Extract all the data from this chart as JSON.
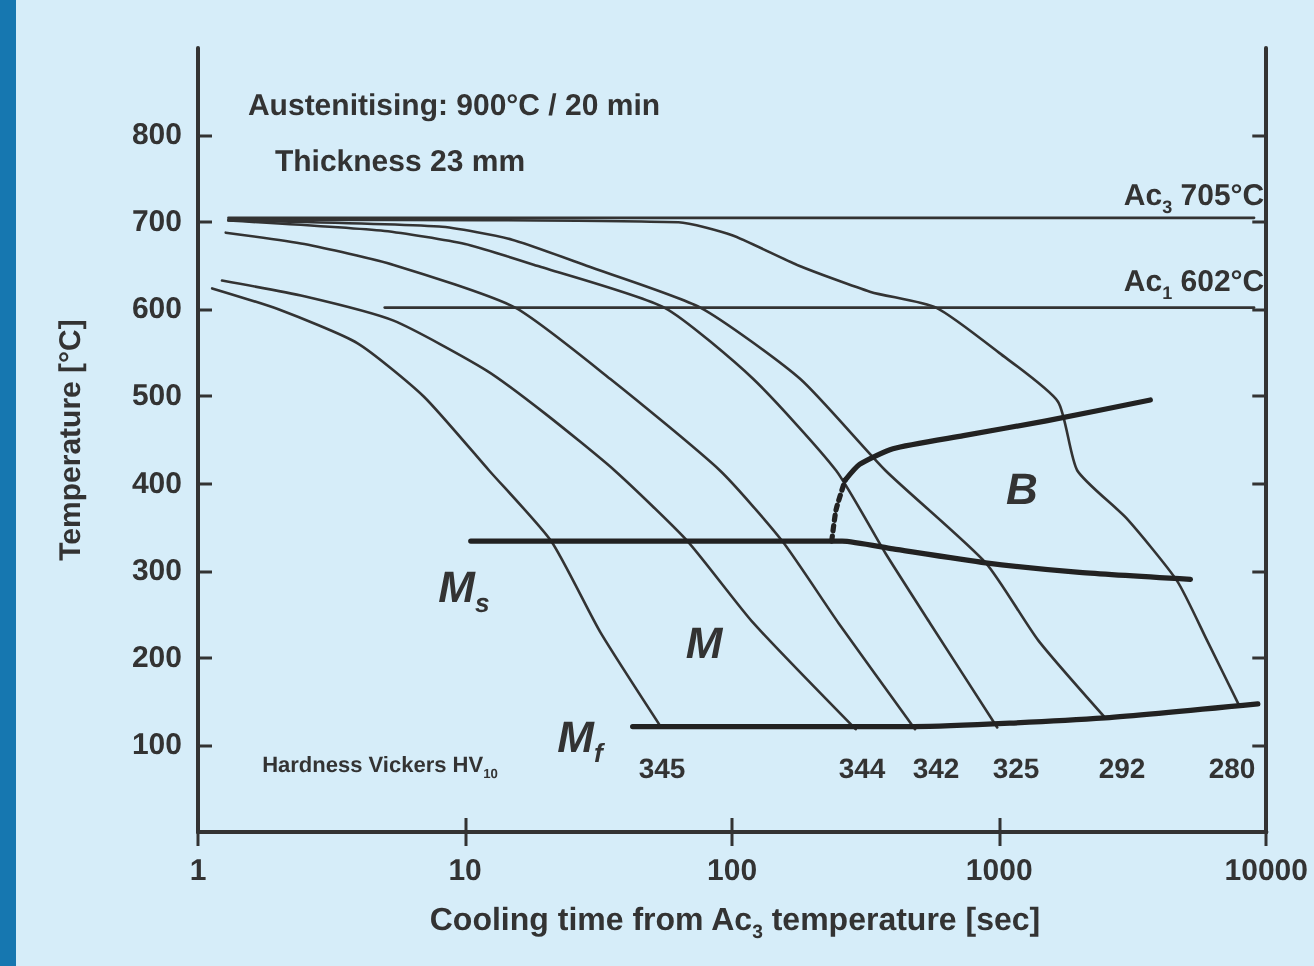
{
  "chart_data": {
    "type": "line",
    "xlabel": "Cooling time from Ac$_{3}$ temperature [sec]",
    "ylabel": "Temperature [°C]",
    "log": "x",
    "xlim": [
      1,
      10000
    ],
    "xticks": [
      1,
      10,
      100,
      1000,
      10000
    ],
    "ylim": [
      0,
      900
    ],
    "yticks": [
      100,
      200,
      300,
      400,
      500,
      600,
      700,
      800
    ],
    "grid": false,
    "marker": "none",
    "line_style": "solid",
    "series": [
      {
        "color": "#333333",
        "x": [
          1.3,
          9000
        ],
        "values": [
          705,
          705
        ]
      },
      {
        "color": "#333333",
        "x": [
          5,
          9000
        ],
        "values": [
          602,
          602
        ]
      },
      {
        "color": "#333333",
        "x": [
          1.13,
          2,
          3.96,
          7,
          12.3,
          21,
          32,
          54
        ],
        "values": [
          624,
          600,
          561,
          500,
          415,
          334,
          230,
          121
        ]
      },
      {
        "color": "#333333",
        "x": [
          1.23,
          2.5,
          5.4,
          12,
          20,
          36.3,
          68,
          120,
          290
        ],
        "values": [
          633,
          615,
          587,
          530,
          480,
          415,
          334,
          240,
          118
        ]
      },
      {
        "color": "#333333",
        "x": [
          1.27,
          2.5,
          5.4,
          15.4,
          35,
          90,
          154,
          250,
          484
        ],
        "values": [
          688,
          675,
          651,
          602,
          520,
          415,
          334,
          240,
          118
        ]
      },
      {
        "color": "#333333",
        "x": [
          1.3,
          5,
          10,
          18.6,
          55.7,
          120,
          245,
          375,
          550,
          983
        ],
        "values": [
          702,
          690,
          675,
          650,
          602,
          520,
          415,
          320,
          240,
          120
        ]
      },
      {
        "color": "#333333",
        "x": [
          1.3,
          8,
          15,
          28.5,
          76,
          180,
          375,
          890,
          1400,
          2495
        ],
        "values": [
          702,
          695,
          680,
          650,
          602,
          520,
          415,
          309,
          220,
          131
        ]
      },
      {
        "color": "#333333",
        "x": [
          1.3,
          63,
          100,
          178,
          330,
          580,
          1000,
          1660,
          1960,
          3000,
          4640,
          6000,
          7860
        ],
        "values": [
          703,
          700,
          685,
          650,
          620,
          602,
          550,
          494,
          415,
          360,
          288,
          220,
          147
        ]
      },
      {
        "color": "#222222",
        "x": [
          10.5,
          258,
          400,
          890,
          2000,
          5200
        ],
        "values": [
          334,
          334,
          325,
          309,
          298,
          290
        ]
      },
      {
        "color": "#222222",
        "x": [
          42.4,
          480,
          2495,
          9300
        ],
        "values": [
          121,
          121,
          131,
          147
        ]
      },
      {
        "color": "#222222",
        "x": [
          265,
          300,
          400,
          735,
          1500,
          3680
        ],
        "values": [
          404,
          422,
          440,
          455,
          472,
          496
        ]
      },
      {
        "color": "#222222",
        "x": [
          236,
          245,
          265
        ],
        "values": [
          334,
          370,
          404
        ],
        "line_style": "dotted"
      }
    ],
    "annotations": [
      "Austenitising: 900°C / 20 min",
      "Thickness 23 mm",
      "Ac$_{3}$ 705°C",
      "Ac$_{1}$ 602°C",
      "B",
      "M$_{s}$",
      "M",
      "M$_{f}$",
      "Hardness Vickers HV$_{10}$",
      "345",
      "344",
      "342",
      "325",
      "292",
      "280"
    ]
  }
}
